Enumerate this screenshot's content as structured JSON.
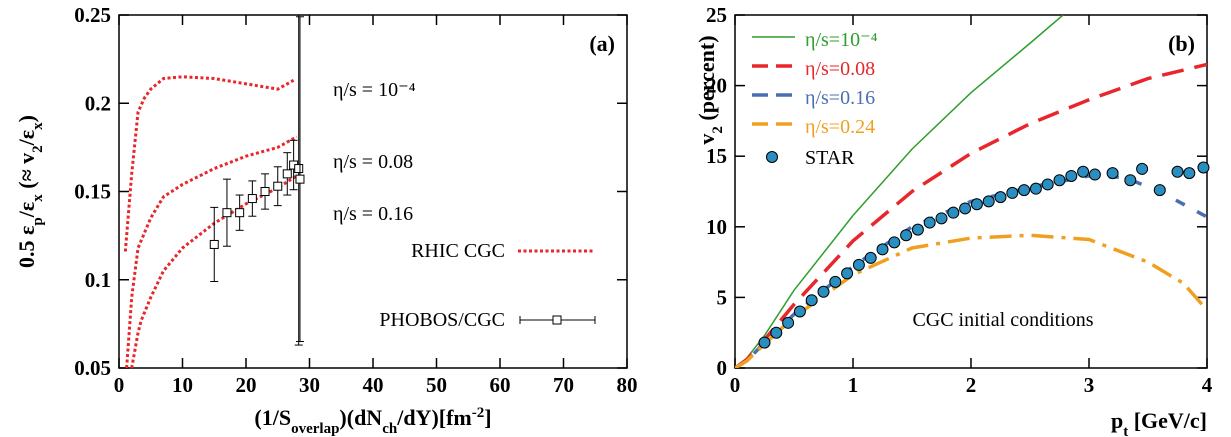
{
  "chart_data": [
    {
      "type": "line",
      "panel_label": "(a)",
      "xlabel": {
        "parts": [
          {
            "text": "(1/S"
          },
          {
            "text": "overlap",
            "shift": "sub"
          },
          {
            "text": ")(dN"
          },
          {
            "text": "ch",
            "shift": "sub"
          },
          {
            "text": "/dY)[fm"
          },
          {
            "text": "-2",
            "shift": "super"
          },
          {
            "text": "]"
          }
        ]
      },
      "ylabel": {
        "parts": [
          {
            "text": "0.5 ε"
          },
          {
            "text": "p",
            "shift": "sub"
          },
          {
            "text": "/ε"
          },
          {
            "text": "x",
            "shift": "sub"
          },
          {
            "text": " (≈ v"
          },
          {
            "text": "2",
            "shift": "sub"
          },
          {
            "text": "/ε"
          },
          {
            "text": "x",
            "shift": "sub"
          },
          {
            "text": ")"
          }
        ]
      },
      "xlim": [
        0,
        80
      ],
      "xticks": [
        0,
        10,
        20,
        30,
        40,
        50,
        60,
        70,
        80
      ],
      "ylim": [
        0.05,
        0.25
      ],
      "yticks": [
        0.05,
        0.1,
        0.15,
        0.2,
        0.25
      ],
      "series": [
        {
          "name": "RHIC CGC",
          "color": "#e8262b",
          "style": "dotted",
          "curves": [
            {
              "label": "η/s = 10⁻⁴",
              "x": [
                1,
                2,
                3,
                4,
                5,
                7,
                10,
                15,
                20,
                25,
                27.5
              ],
              "values": [
                0.116,
                0.16,
                0.195,
                0.203,
                0.208,
                0.214,
                0.215,
                0.214,
                0.211,
                0.208,
                0.213
              ]
            },
            {
              "label": "η/s = 0.08",
              "x": [
                1.2,
                2,
                3,
                5,
                7,
                10,
                15,
                20,
                25,
                28
              ],
              "values": [
                0.05,
                0.09,
                0.118,
                0.135,
                0.147,
                0.154,
                0.163,
                0.17,
                0.175,
                0.181
              ]
            },
            {
              "label": "η/s = 0.16",
              "x": [
                2,
                3,
                3.5,
                5,
                7,
                10,
                15,
                20,
                25,
                28
              ],
              "values": [
                0.05,
                0.07,
                0.077,
                0.09,
                0.105,
                0.118,
                0.132,
                0.143,
                0.152,
                0.159
              ]
            }
          ]
        },
        {
          "name": "PHOBOS/CGC",
          "color": "#000000",
          "marker": "square",
          "x": [
            15,
            17,
            19,
            21,
            23,
            25,
            26.5,
            27.5,
            28.3,
            28.5
          ],
          "values": [
            0.12,
            0.138,
            0.138,
            0.146,
            0.15,
            0.153,
            0.16,
            0.165,
            0.163,
            0.157
          ],
          "errors": [
            0.021,
            0.019,
            0.01,
            0.01,
            0.01,
            0.011,
            0.012,
            0.014,
            0.1,
            0.092
          ]
        }
      ]
    },
    {
      "type": "line",
      "panel_label": "(b)",
      "annotation": "CGC initial conditions",
      "xlabel": {
        "parts": [
          {
            "text": "p"
          },
          {
            "text": "t",
            "shift": "sub"
          },
          {
            "text": " [GeV/c]"
          }
        ]
      },
      "ylabel": {
        "parts": [
          {
            "text": "v"
          },
          {
            "text": "2",
            "shift": "sub"
          },
          {
            "text": " (percent)"
          }
        ]
      },
      "xlim": [
        0,
        4
      ],
      "xticks": [
        0,
        1,
        2,
        3,
        4
      ],
      "ylim": [
        0,
        25
      ],
      "yticks": [
        0,
        5,
        10,
        15,
        20,
        25
      ],
      "series": [
        {
          "name": "η/s=10⁻⁴",
          "color": "#2e9e2e",
          "style": "solid",
          "x": [
            0,
            0.1,
            0.25,
            0.5,
            1,
            1.5,
            2,
            2.5,
            2.78
          ],
          "values": [
            0,
            0.7,
            2.3,
            5.5,
            10.8,
            15.5,
            19.5,
            23,
            25
          ]
        },
        {
          "name": "η/s=0.08",
          "color": "#e8262b",
          "style": "dashed",
          "x": [
            0,
            0.1,
            0.25,
            0.5,
            1,
            1.5,
            2,
            2.5,
            3,
            3.5,
            4
          ],
          "values": [
            0,
            0.6,
            2,
            4.5,
            9,
            12.5,
            15.2,
            17.3,
            19,
            20.5,
            21.5
          ]
        },
        {
          "name": "η/s=0.16",
          "color": "#4a6fb0",
          "style": "dashed2",
          "x": [
            0,
            0.1,
            0.25,
            0.5,
            1,
            1.5,
            2,
            2.5,
            3,
            3.3,
            3.6,
            4
          ],
          "values": [
            0,
            0.5,
            1.8,
            3.8,
            7.2,
            10,
            11.8,
            12.8,
            13.6,
            13.5,
            12.5,
            10.7
          ]
        },
        {
          "name": "η/s=0.24",
          "color": "#f0a020",
          "style": "dashdot",
          "x": [
            0,
            0.1,
            0.25,
            0.5,
            1,
            1.5,
            2,
            2.5,
            3,
            3.5,
            3.8,
            4
          ],
          "values": [
            0,
            0.5,
            1.7,
            3.6,
            6.6,
            8.5,
            9.2,
            9.4,
            9.1,
            7.5,
            6,
            4.1
          ]
        },
        {
          "name": "STAR",
          "color": "#2a8fc0",
          "marker": "circle",
          "x": [
            0.25,
            0.35,
            0.45,
            0.55,
            0.65,
            0.75,
            0.85,
            0.95,
            1.05,
            1.15,
            1.25,
            1.35,
            1.45,
            1.55,
            1.65,
            1.75,
            1.85,
            1.95,
            2.05,
            2.15,
            2.25,
            2.35,
            2.45,
            2.55,
            2.65,
            2.75,
            2.85,
            2.95,
            3.05,
            3.2,
            3.35,
            3.45,
            3.6,
            3.75,
            3.85,
            3.97
          ],
          "values": [
            1.8,
            2.5,
            3.2,
            4,
            4.8,
            5.4,
            6.1,
            6.7,
            7.3,
            7.8,
            8.4,
            8.9,
            9.4,
            9.8,
            10.3,
            10.6,
            11,
            11.3,
            11.6,
            11.8,
            12.1,
            12.4,
            12.6,
            12.7,
            13,
            13.3,
            13.6,
            13.9,
            13.7,
            13.8,
            13.3,
            14.1,
            12.6,
            13.9,
            13.8,
            14.2
          ]
        }
      ]
    }
  ]
}
